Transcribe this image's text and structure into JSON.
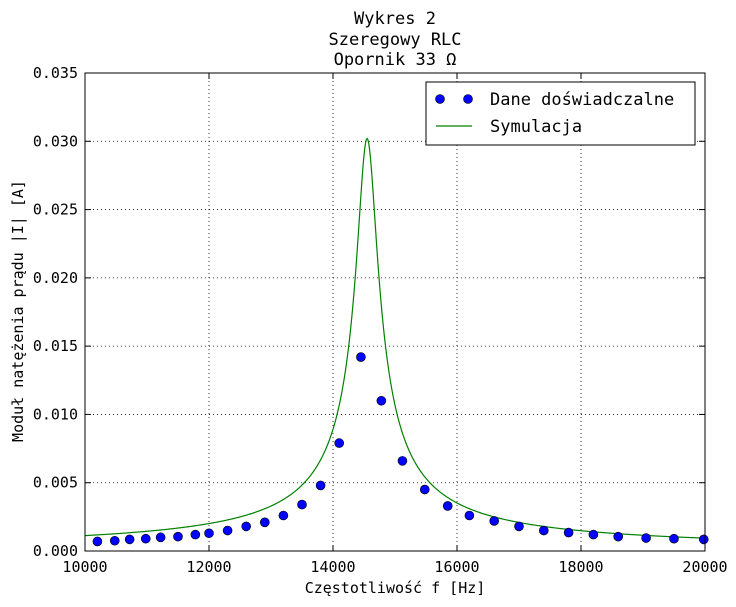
{
  "chart_data": {
    "type": "scatter",
    "title_lines": [
      "Wykres 2",
      "Szeregowy RLC",
      "Opornik 33 Ω"
    ],
    "xlabel": "Częstotliwość f [Hz]",
    "ylabel": "Moduł natężenia prądu |I| [A]",
    "xlim": [
      10000,
      20000
    ],
    "ylim": [
      0,
      0.035
    ],
    "xticks": [
      10000,
      12000,
      14000,
      16000,
      18000,
      20000
    ],
    "yticks": [
      0.0,
      0.005,
      0.01,
      0.015,
      0.02,
      0.025,
      0.03,
      0.035
    ],
    "xtick_labels": [
      "10000",
      "12000",
      "14000",
      "16000",
      "18000",
      "20000"
    ],
    "ytick_labels": [
      "0.000",
      "0.005",
      "0.010",
      "0.015",
      "0.020",
      "0.025",
      "0.030",
      "0.035"
    ],
    "grid": true,
    "legend_position": "top-right",
    "series": [
      {
        "name": "Dane doświadczalne",
        "kind": "markers",
        "color": "#0000ff",
        "x": [
          10200,
          10480,
          10720,
          10980,
          11220,
          11500,
          11780,
          12000,
          12300,
          12600,
          12900,
          13200,
          13500,
          13800,
          14100,
          14450,
          14780,
          15120,
          15480,
          15850,
          16200,
          16600,
          17000,
          17400,
          17800,
          18200,
          18600,
          19050,
          19500,
          19980
        ],
        "y": [
          0.0007,
          0.00075,
          0.00085,
          0.0009,
          0.001,
          0.00105,
          0.0012,
          0.0013,
          0.0015,
          0.0018,
          0.0021,
          0.0026,
          0.0034,
          0.0048,
          0.0079,
          0.0142,
          0.011,
          0.0066,
          0.0045,
          0.0033,
          0.0026,
          0.0022,
          0.0018,
          0.0015,
          0.00135,
          0.0012,
          0.00105,
          0.00095,
          0.0009,
          0.00085
        ]
      },
      {
        "name": "Symulacja",
        "kind": "line",
        "color": "#008000",
        "model": {
          "f0": 14550,
          "peak": 0.0302,
          "width": 170
        }
      }
    ]
  }
}
